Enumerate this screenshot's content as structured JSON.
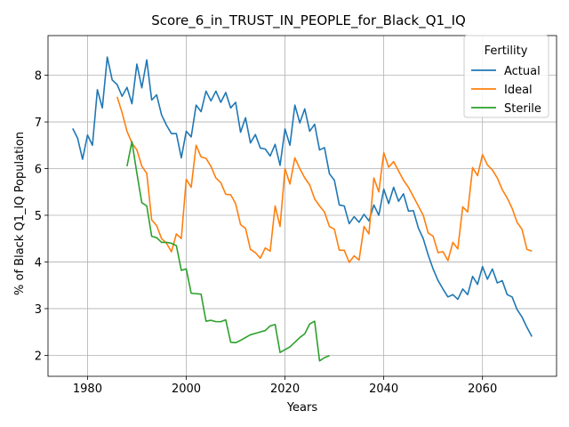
{
  "chart_data": {
    "type": "line",
    "title": "Score_6_in_TRUST_IN_PEOPLE_for_Black_Q1_IQ",
    "xlabel": "Years",
    "ylabel": "% of Black Q1_IQ Population",
    "xlim": [
      1972,
      2075
    ],
    "ylim": [
      1.55,
      8.85
    ],
    "xticks": [
      1980,
      2000,
      2020,
      2040,
      2060
    ],
    "yticks": [
      2,
      3,
      4,
      5,
      6,
      7,
      8
    ],
    "grid": true,
    "legend": {
      "title": "Fertility",
      "placement": "top-right"
    },
    "series": [
      {
        "name": "Actual",
        "color": "#1f77b4",
        "x": [
          1977,
          1978,
          1979,
          1980,
          1981,
          1982,
          1983,
          1984,
          1985,
          1986,
          1987,
          1988,
          1989,
          1990,
          1991,
          1992,
          1993,
          1994,
          1995,
          1996,
          1997,
          1998,
          1999,
          2000,
          2001,
          2002,
          2003,
          2004,
          2005,
          2006,
          2007,
          2008,
          2009,
          2010,
          2011,
          2012,
          2013,
          2014,
          2015,
          2016,
          2017,
          2018,
          2019,
          2020,
          2021,
          2022,
          2023,
          2024,
          2025,
          2026,
          2027,
          2028,
          2029,
          2030,
          2031,
          2032,
          2033,
          2034,
          2035,
          2036,
          2037,
          2038,
          2039,
          2040,
          2041,
          2042,
          2043,
          2044,
          2045,
          2046,
          2047,
          2048,
          2049,
          2050,
          2051,
          2052,
          2053,
          2054,
          2055,
          2056,
          2057,
          2058,
          2059,
          2060,
          2061,
          2062,
          2063,
          2064,
          2065,
          2066,
          2067,
          2068,
          2069,
          2070
        ],
        "y": [
          6.86,
          6.65,
          6.2,
          6.72,
          6.5,
          7.69,
          7.3,
          8.39,
          7.9,
          7.8,
          7.55,
          7.74,
          7.39,
          8.24,
          7.73,
          8.33,
          7.47,
          7.58,
          7.15,
          6.93,
          6.75,
          6.75,
          6.23,
          6.8,
          6.68,
          7.36,
          7.22,
          7.66,
          7.45,
          7.66,
          7.42,
          7.63,
          7.3,
          7.42,
          6.78,
          7.09,
          6.55,
          6.73,
          6.44,
          6.42,
          6.27,
          6.52,
          6.07,
          6.85,
          6.5,
          7.36,
          6.98,
          7.28,
          6.8,
          6.95,
          6.4,
          6.45,
          5.89,
          5.75,
          5.22,
          5.2,
          4.82,
          4.97,
          4.85,
          5.02,
          4.88,
          5.22,
          5.0,
          5.56,
          5.25,
          5.6,
          5.3,
          5.46,
          5.09,
          5.1,
          4.73,
          4.5,
          4.15,
          3.85,
          3.6,
          3.42,
          3.25,
          3.3,
          3.2,
          3.42,
          3.3,
          3.69,
          3.52,
          3.9,
          3.63,
          3.85,
          3.55,
          3.6,
          3.3,
          3.25,
          2.98,
          2.82,
          2.6,
          2.4
        ]
      },
      {
        "name": "Ideal",
        "color": "#ff7f0e",
        "x": [
          1986,
          1987,
          1988,
          1989,
          1990,
          1991,
          1992,
          1993,
          1994,
          1995,
          1996,
          1997,
          1998,
          1999,
          2000,
          2001,
          2002,
          2003,
          2004,
          2005,
          2006,
          2007,
          2008,
          2009,
          2010,
          2011,
          2012,
          2013,
          2014,
          2015,
          2016,
          2017,
          2018,
          2019,
          2020,
          2021,
          2022,
          2023,
          2024,
          2025,
          2026,
          2027,
          2028,
          2029,
          2030,
          2031,
          2032,
          2033,
          2034,
          2035,
          2036,
          2037,
          2038,
          2039,
          2040,
          2041,
          2042,
          2043,
          2044,
          2045,
          2046,
          2047,
          2048,
          2049,
          2050,
          2051,
          2052,
          2053,
          2054,
          2055,
          2056,
          2057,
          2058,
          2059,
          2060,
          2061,
          2062,
          2063,
          2064,
          2065,
          2066,
          2067,
          2068,
          2069,
          2070
        ],
        "y": [
          7.54,
          7.2,
          6.8,
          6.55,
          6.4,
          6.05,
          5.9,
          4.9,
          4.78,
          4.5,
          4.4,
          4.22,
          4.6,
          4.5,
          5.77,
          5.6,
          6.5,
          6.25,
          6.22,
          6.05,
          5.8,
          5.7,
          5.45,
          5.44,
          5.25,
          4.8,
          4.72,
          4.27,
          4.2,
          4.08,
          4.3,
          4.23,
          5.2,
          4.76,
          6.0,
          5.67,
          6.23,
          6.0,
          5.8,
          5.65,
          5.35,
          5.2,
          5.07,
          4.76,
          4.7,
          4.25,
          4.25,
          3.99,
          4.13,
          4.04,
          4.76,
          4.6,
          5.8,
          5.5,
          6.34,
          6.03,
          6.15,
          5.95,
          5.75,
          5.6,
          5.4,
          5.2,
          5.0,
          4.62,
          4.55,
          4.2,
          4.22,
          4.03,
          4.42,
          4.28,
          5.18,
          5.07,
          6.02,
          5.85,
          6.3,
          6.08,
          5.97,
          5.8,
          5.55,
          5.37,
          5.15,
          4.85,
          4.7,
          4.27,
          4.23
        ]
      },
      {
        "name": "Sterile",
        "color": "#2ca02c",
        "x": [
          1988,
          1989,
          1990,
          1991,
          1992,
          1993,
          1994,
          1995,
          1996,
          1997,
          1998,
          1999,
          2000,
          2001,
          2002,
          2003,
          2004,
          2005,
          2006,
          2007,
          2008,
          2009,
          2010,
          2011,
          2012,
          2013,
          2014,
          2015,
          2016,
          2017,
          2018,
          2019,
          2020,
          2021,
          2022,
          2023,
          2024,
          2025,
          2026,
          2027,
          2028,
          2029
        ],
        "y": [
          6.05,
          6.58,
          5.9,
          5.27,
          5.2,
          4.55,
          4.52,
          4.42,
          4.42,
          4.4,
          4.35,
          3.82,
          3.85,
          3.33,
          3.32,
          3.31,
          2.73,
          2.75,
          2.72,
          2.72,
          2.76,
          2.28,
          2.27,
          2.32,
          2.38,
          2.44,
          2.47,
          2.5,
          2.53,
          2.63,
          2.66,
          2.06,
          2.12,
          2.18,
          2.28,
          2.38,
          2.46,
          2.67,
          2.73,
          1.88,
          1.95,
          1.99
        ]
      }
    ]
  }
}
